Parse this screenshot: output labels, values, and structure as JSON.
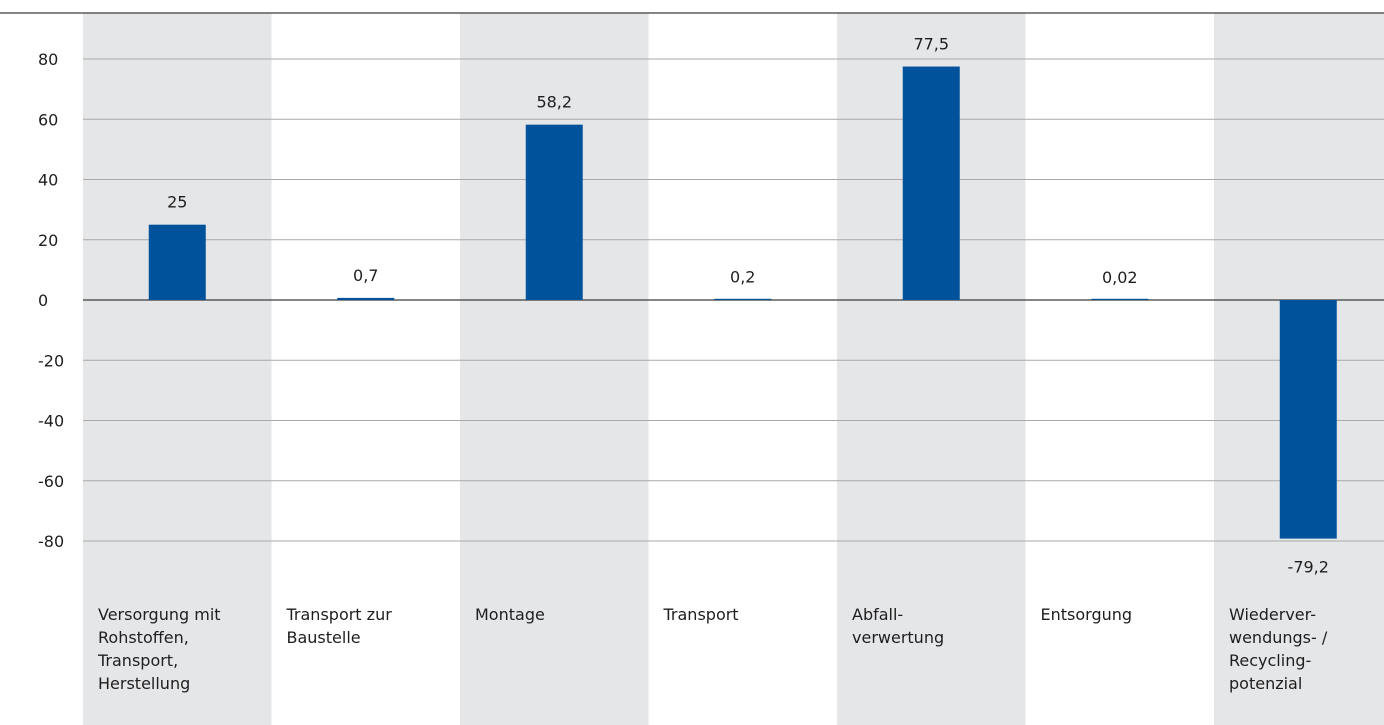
{
  "chart_data": {
    "type": "bar",
    "title": "",
    "xlabel": "",
    "ylabel": "",
    "ylim": [
      -80,
      80
    ],
    "yticks": [
      80,
      60,
      40,
      20,
      0,
      -20,
      -40,
      -60,
      -80
    ],
    "grid": true,
    "categories": [
      [
        "Versorgung mit",
        "Rohstoffen,",
        "Transport,",
        "Herstellung"
      ],
      [
        "Transport zur",
        "Baustelle"
      ],
      [
        "Montage"
      ],
      [
        "Transport"
      ],
      [
        "Abfall-",
        "verwertung"
      ],
      [
        "Entsorgung"
      ],
      [
        "Wiederver-",
        "wendungs- /",
        "Recycling-",
        "potenzial"
      ]
    ],
    "values": [
      25,
      0.7,
      58.2,
      0.2,
      77.5,
      0.02,
      -79.2
    ],
    "value_labels": [
      "25",
      "0,7",
      "58,2",
      "0,2",
      "77,5",
      "0,02",
      "-79,2"
    ],
    "colors": {
      "bar": "#00529b",
      "band": "#e5e6e8",
      "grid": "#a9a9a9",
      "top_rule": "#3c3c3c",
      "text": "#1e1e1e"
    }
  }
}
